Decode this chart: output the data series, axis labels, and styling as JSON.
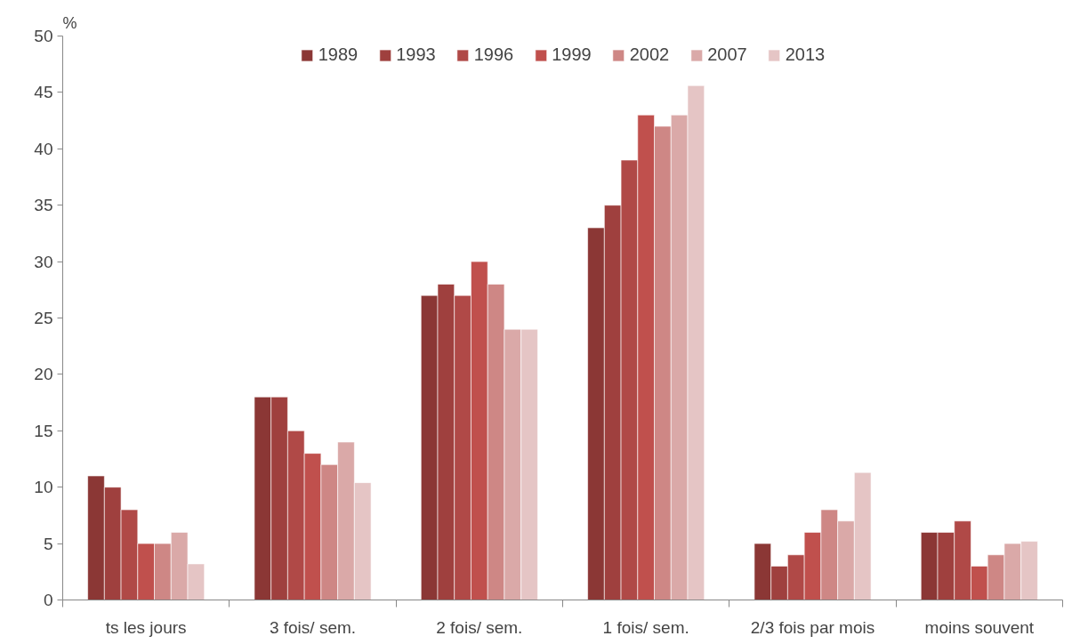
{
  "chart_data": {
    "type": "bar",
    "ylabel": "%",
    "categories": [
      "ts les jours",
      "3 fois/ sem.",
      "2 fois/ sem.",
      "1 fois/ sem.",
      "2/3 fois par mois",
      "moins souvent"
    ],
    "series": [
      {
        "name": "1989",
        "color": "#8b3735",
        "values": [
          11,
          18,
          27,
          33,
          5,
          6
        ]
      },
      {
        "name": "1993",
        "color": "#9f403e",
        "values": [
          10,
          18,
          28,
          35,
          3,
          6
        ]
      },
      {
        "name": "1996",
        "color": "#b04947",
        "values": [
          8,
          15,
          27,
          39,
          4,
          7
        ]
      },
      {
        "name": "1999",
        "color": "#c0504d",
        "values": [
          5,
          13,
          30,
          43,
          6,
          3
        ]
      },
      {
        "name": "2002",
        "color": "#ce8785",
        "values": [
          5,
          12,
          28,
          42,
          8,
          4
        ]
      },
      {
        "name": "2007",
        "color": "#daa9a8",
        "values": [
          6,
          14,
          24,
          43,
          7,
          5
        ]
      },
      {
        "name": "2013",
        "color": "#e5c5c5",
        "values": [
          3.2,
          10.4,
          24,
          45.6,
          11.3,
          5.2
        ]
      }
    ],
    "ylim": [
      0,
      50
    ],
    "yticks": [
      0,
      5,
      10,
      15,
      20,
      25,
      30,
      35,
      40,
      45,
      50
    ],
    "grid": false,
    "legend": "top"
  }
}
